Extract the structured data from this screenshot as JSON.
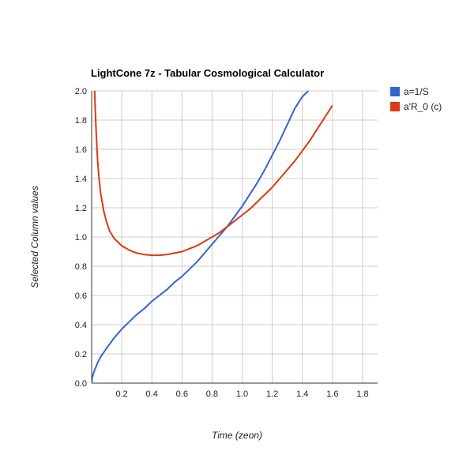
{
  "chart_data": {
    "type": "line",
    "title": "LightCone 7z - Tabular Cosmological Calculator",
    "xlabel": "Time (zeon)",
    "ylabel": "Selected Column values",
    "xlim": [
      0,
      1.9
    ],
    "ylim": [
      0,
      2.0
    ],
    "x_ticks": [
      "0.2",
      "0.4",
      "0.6",
      "0.8",
      "1.0",
      "1.2",
      "1.4",
      "1.6",
      "1.8"
    ],
    "y_ticks": [
      "0.0",
      "0.2",
      "0.4",
      "0.6",
      "0.8",
      "1.0",
      "1.2",
      "1.4",
      "1.6",
      "1.8",
      "2.0"
    ],
    "grid": true,
    "legend_position": "right",
    "series": [
      {
        "name": "a=1/S",
        "color": "#3366cc",
        "x": [
          0.0,
          0.005,
          0.01,
          0.02,
          0.04,
          0.06,
          0.08,
          0.1,
          0.15,
          0.2,
          0.25,
          0.3,
          0.35,
          0.4,
          0.45,
          0.5,
          0.55,
          0.6,
          0.65,
          0.7,
          0.75,
          0.8,
          0.85,
          0.9,
          0.95,
          1.0,
          1.05,
          1.1,
          1.15,
          1.2,
          1.25,
          1.3,
          1.35,
          1.4,
          1.44
        ],
        "y": [
          0.0,
          0.04,
          0.06,
          0.09,
          0.14,
          0.18,
          0.21,
          0.24,
          0.31,
          0.37,
          0.42,
          0.47,
          0.51,
          0.56,
          0.6,
          0.64,
          0.69,
          0.73,
          0.78,
          0.83,
          0.89,
          0.95,
          1.01,
          1.07,
          1.14,
          1.21,
          1.29,
          1.37,
          1.46,
          1.56,
          1.66,
          1.77,
          1.88,
          1.96,
          2.0
        ]
      },
      {
        "name": "a'R_0 (c)",
        "color": "#dc3912",
        "x": [
          0.02,
          0.025,
          0.03,
          0.04,
          0.05,
          0.06,
          0.08,
          0.1,
          0.12,
          0.15,
          0.2,
          0.25,
          0.3,
          0.35,
          0.4,
          0.45,
          0.5,
          0.55,
          0.6,
          0.65,
          0.7,
          0.75,
          0.8,
          0.85,
          0.9,
          0.95,
          1.0,
          1.05,
          1.1,
          1.15,
          1.2,
          1.25,
          1.3,
          1.35,
          1.4,
          1.45,
          1.5,
          1.55,
          1.6
        ],
        "y": [
          2.0,
          1.85,
          1.72,
          1.52,
          1.39,
          1.3,
          1.18,
          1.1,
          1.04,
          0.99,
          0.94,
          0.91,
          0.89,
          0.88,
          0.875,
          0.875,
          0.88,
          0.89,
          0.9,
          0.92,
          0.94,
          0.97,
          1.0,
          1.03,
          1.07,
          1.11,
          1.15,
          1.19,
          1.24,
          1.29,
          1.34,
          1.4,
          1.46,
          1.52,
          1.59,
          1.66,
          1.74,
          1.82,
          1.9
        ]
      }
    ]
  }
}
